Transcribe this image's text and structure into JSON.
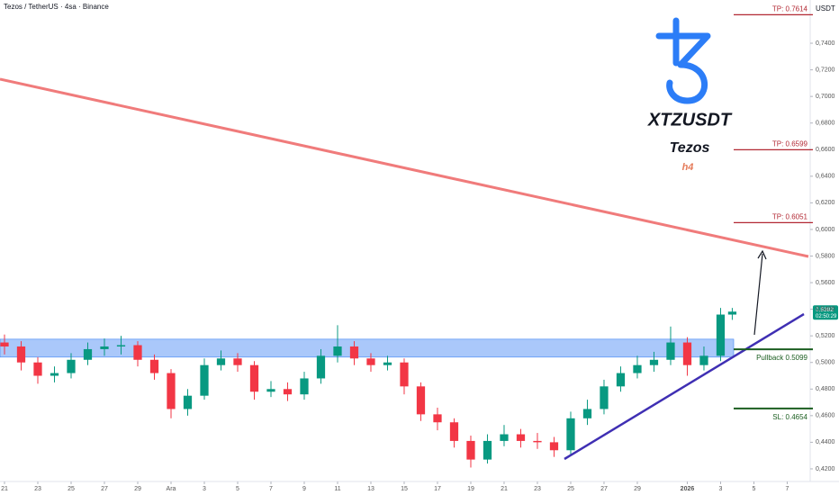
{
  "chart_data": {
    "type": "candlestick",
    "title": "Tezos / TetherUS · 4sa · Binance",
    "currency": "USDT",
    "symbol": "XTZUSDT",
    "name": "Tezos",
    "timeframe": "h4",
    "candles": {
      "x": [
        0,
        1,
        2,
        3,
        4,
        5,
        6,
        7,
        8,
        9,
        10,
        11,
        12,
        13,
        14,
        15,
        16,
        17,
        18,
        19,
        20,
        21,
        22,
        23,
        24,
        25,
        26,
        27,
        28,
        29,
        30,
        31,
        32,
        33,
        34,
        35,
        36,
        37,
        38,
        39,
        40,
        41,
        42,
        43,
        43.7
      ],
      "open": [
        0.515,
        0.512,
        0.5,
        0.49,
        0.492,
        0.502,
        0.51,
        0.512,
        0.513,
        0.502,
        0.492,
        0.465,
        0.475,
        0.498,
        0.503,
        0.498,
        0.478,
        0.48,
        0.476,
        0.488,
        0.505,
        0.512,
        0.503,
        0.498,
        0.5,
        0.482,
        0.461,
        0.455,
        0.441,
        0.427,
        0.441,
        0.446,
        0.441,
        0.44,
        0.434,
        0.458,
        0.465,
        0.482,
        0.492,
        0.498,
        0.502,
        0.515,
        0.498,
        0.505,
        0.536
      ],
      "high": [
        0.521,
        0.516,
        0.504,
        0.497,
        0.507,
        0.515,
        0.518,
        0.52,
        0.516,
        0.506,
        0.495,
        0.48,
        0.503,
        0.509,
        0.507,
        0.501,
        0.486,
        0.485,
        0.493,
        0.51,
        0.528,
        0.516,
        0.507,
        0.505,
        0.503,
        0.485,
        0.466,
        0.458,
        0.445,
        0.446,
        0.453,
        0.45,
        0.447,
        0.444,
        0.463,
        0.472,
        0.487,
        0.497,
        0.505,
        0.508,
        0.527,
        0.519,
        0.512,
        0.541,
        0.541
      ],
      "low": [
        0.506,
        0.494,
        0.484,
        0.485,
        0.488,
        0.498,
        0.505,
        0.506,
        0.497,
        0.487,
        0.458,
        0.46,
        0.472,
        0.494,
        0.493,
        0.472,
        0.474,
        0.471,
        0.472,
        0.484,
        0.5,
        0.498,
        0.493,
        0.494,
        0.476,
        0.456,
        0.449,
        0.436,
        0.421,
        0.424,
        0.437,
        0.436,
        0.435,
        0.429,
        0.431,
        0.453,
        0.461,
        0.478,
        0.488,
        0.493,
        0.498,
        0.49,
        0.494,
        0.501,
        0.532
      ],
      "close": [
        0.512,
        0.5,
        0.49,
        0.492,
        0.502,
        0.51,
        0.512,
        0.513,
        0.502,
        0.492,
        0.465,
        0.475,
        0.498,
        0.503,
        0.498,
        0.478,
        0.48,
        0.476,
        0.488,
        0.505,
        0.512,
        0.503,
        0.498,
        0.5,
        0.482,
        0.461,
        0.455,
        0.441,
        0.427,
        0.441,
        0.446,
        0.441,
        0.44,
        0.434,
        0.458,
        0.465,
        0.482,
        0.492,
        0.498,
        0.502,
        0.515,
        0.498,
        0.505,
        0.536,
        0.5382
      ],
      "up_color": "#089981",
      "down_color": "#f23645"
    },
    "xlim": [
      -0.27,
      48.38
    ],
    "xticks": [
      {
        "value": 0,
        "label": "21"
      },
      {
        "value": 2,
        "label": "23"
      },
      {
        "value": 4,
        "label": "25"
      },
      {
        "value": 6,
        "label": "27"
      },
      {
        "value": 8,
        "label": "29"
      },
      {
        "value": 10,
        "label": "Ara"
      },
      {
        "value": 12,
        "label": "3"
      },
      {
        "value": 14,
        "label": "5"
      },
      {
        "value": 16,
        "label": "7"
      },
      {
        "value": 18,
        "label": "9"
      },
      {
        "value": 20,
        "label": "11"
      },
      {
        "value": 22,
        "label": "13"
      },
      {
        "value": 24,
        "label": "15"
      },
      {
        "value": 26,
        "label": "17"
      },
      {
        "value": 28,
        "label": "19"
      },
      {
        "value": 30,
        "label": "21"
      },
      {
        "value": 32,
        "label": "23"
      },
      {
        "value": 34,
        "label": "25"
      },
      {
        "value": 36,
        "label": "27"
      },
      {
        "value": 38,
        "label": "29"
      },
      {
        "value": 41,
        "label": "2026"
      },
      {
        "value": 43,
        "label": "3"
      },
      {
        "value": 45,
        "label": "5"
      },
      {
        "value": 47,
        "label": "7"
      }
    ],
    "ylim": [
      0.4105,
      0.7725
    ],
    "yticks": [
      {
        "value": 0.42,
        "label": "0,4200"
      },
      {
        "value": 0.44,
        "label": "0,4400"
      },
      {
        "value": 0.46,
        "label": "0,4600"
      },
      {
        "value": 0.48,
        "label": "0,4800"
      },
      {
        "value": 0.5,
        "label": "0,5000"
      },
      {
        "value": 0.52,
        "label": "0,5200"
      },
      {
        "value": 0.54,
        "label": "0,5400"
      },
      {
        "value": 0.56,
        "label": "0,5600"
      },
      {
        "value": 0.58,
        "label": "0,5800"
      },
      {
        "value": 0.6,
        "label": "0,6000"
      },
      {
        "value": 0.62,
        "label": "0,6200"
      },
      {
        "value": 0.64,
        "label": "0,6400"
      },
      {
        "value": 0.66,
        "label": "0,6600"
      },
      {
        "value": 0.68,
        "label": "0,6800"
      },
      {
        "value": 0.7,
        "label": "0,7000"
      },
      {
        "value": 0.72,
        "label": "0,7200"
      },
      {
        "value": 0.74,
        "label": "0,7400"
      }
    ],
    "zone": [
      0.504,
      0.5175
    ],
    "levels": [
      {
        "value": 0.7614,
        "label": "TP: 0.7614",
        "color": "#b22833"
      },
      {
        "value": 0.6599,
        "label": "TP: 0.6599",
        "color": "#b22833"
      },
      {
        "value": 0.6051,
        "label": "TP: 0.6051",
        "color": "#b22833"
      },
      {
        "value": 0.5099,
        "label": "Pullback 0.5099",
        "color": "#1b5e20"
      },
      {
        "value": 0.4654,
        "label": "SL: 0.4654",
        "color": "#1b5e20"
      }
    ],
    "last_price": {
      "value": 0.5382,
      "label": "0,5382",
      "timer": "02:50:29"
    }
  }
}
